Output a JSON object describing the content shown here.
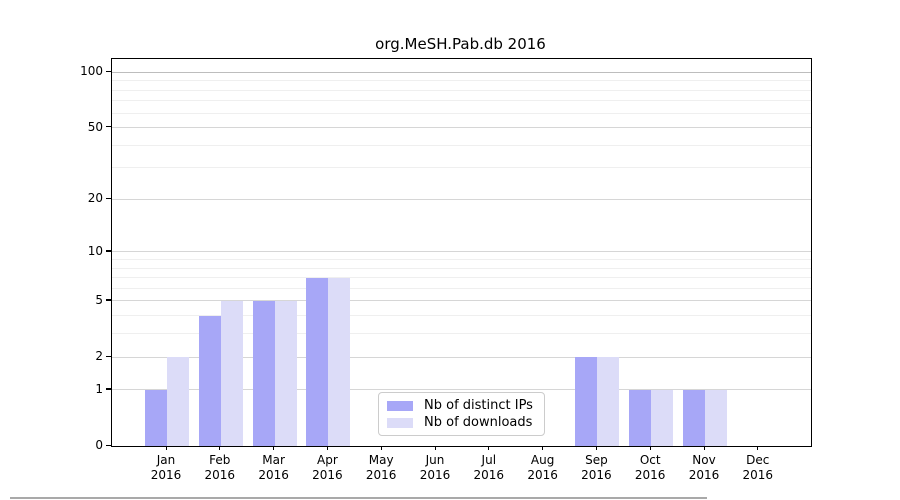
{
  "figure": {
    "title": "org.MeSH.Pab.db 2016"
  },
  "legend": {
    "items": [
      {
        "label": "Nb of distinct IPs",
        "color": "#a7a7f7"
      },
      {
        "label": "Nb of downloads",
        "color": "#dcdcf8"
      }
    ]
  },
  "chart_data": {
    "type": "bar",
    "title": "org.MeSH.Pab.db 2016",
    "categories": [
      "Jan",
      "Feb",
      "Mar",
      "Apr",
      "May",
      "Jun",
      "Jul",
      "Aug",
      "Sep",
      "Oct",
      "Nov",
      "Dec"
    ],
    "year_label": "2016",
    "series": [
      {
        "name": "Nb of distinct IPs",
        "color": "#a7a7f7",
        "values": [
          1,
          4,
          5,
          7,
          0,
          0,
          0,
          0,
          2,
          1,
          1,
          0
        ]
      },
      {
        "name": "Nb of downloads",
        "color": "#dcdcf8",
        "values": [
          2,
          5,
          5,
          7,
          0,
          0,
          0,
          0,
          2,
          1,
          1,
          0
        ]
      }
    ],
    "yscale": "log1p",
    "yticks": [
      0,
      1,
      2,
      5,
      10,
      20,
      50,
      100
    ],
    "minor_yticks": [
      3,
      4,
      6,
      7,
      8,
      9,
      30,
      40,
      60,
      70,
      80,
      90
    ],
    "ylim": [
      0,
      118
    ],
    "grid": "horizontal-only",
    "legend_position": "lower-center"
  }
}
